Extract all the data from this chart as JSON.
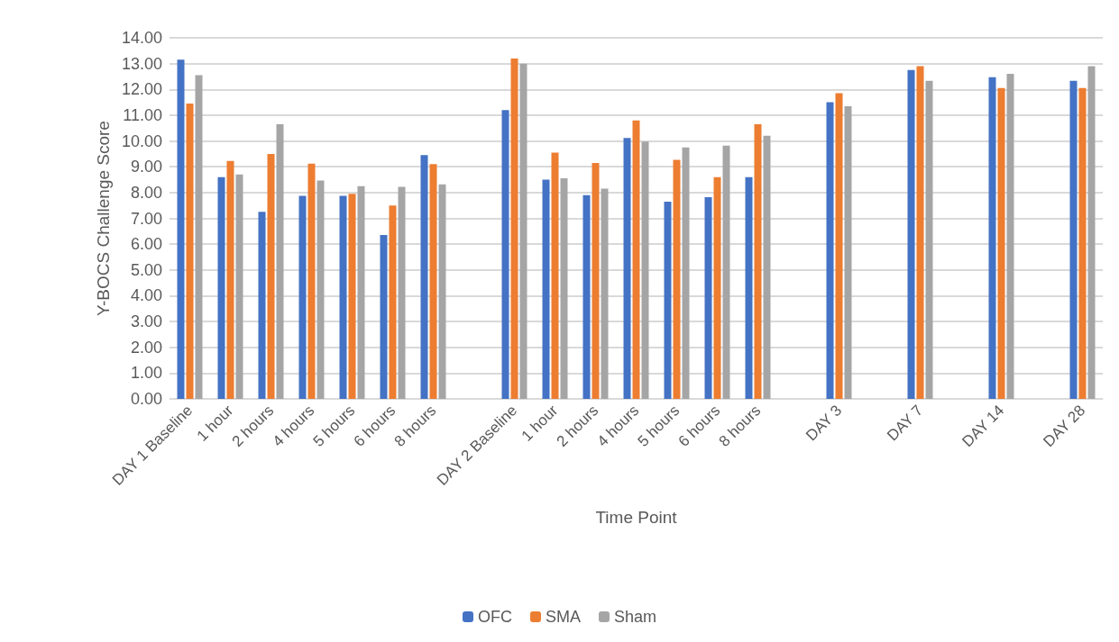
{
  "chart_data": {
    "type": "bar",
    "xlabel": "Time Point",
    "ylabel": "Y-BOCS Challenge Score",
    "categories": [
      "DAY 1 Baseline",
      "1 hour",
      "2 hours",
      "4 hours",
      "5 hours",
      "6 hours",
      "8 hours",
      null,
      "DAY 2 Baseline",
      "1 hour",
      "2 hours",
      "4 hours",
      "5 hours",
      "6 hours",
      "8 hours",
      null,
      "DAY 3",
      null,
      "DAY 7",
      null,
      "DAY 14",
      null,
      "DAY 28"
    ],
    "series": [
      {
        "name": "OFC",
        "color": "#4472c4",
        "values": [
          13.15,
          8.6,
          7.25,
          7.87,
          7.87,
          6.35,
          9.45,
          null,
          11.2,
          8.5,
          7.9,
          10.12,
          7.65,
          7.82,
          8.6,
          null,
          11.5,
          null,
          12.75,
          null,
          12.47,
          null,
          12.33
        ]
      },
      {
        "name": "SMA",
        "color": "#ed7d31",
        "values": [
          11.45,
          9.23,
          9.5,
          9.12,
          7.95,
          7.5,
          9.1,
          null,
          13.2,
          9.55,
          9.15,
          10.8,
          9.27,
          8.6,
          10.65,
          null,
          11.85,
          null,
          12.9,
          null,
          12.05,
          null,
          12.05
        ]
      },
      {
        "name": "Sham",
        "color": "#a5a5a5",
        "values": [
          12.55,
          8.7,
          10.65,
          8.47,
          8.25,
          8.22,
          8.32,
          null,
          13.0,
          8.55,
          8.15,
          9.98,
          9.75,
          9.82,
          10.2,
          null,
          11.35,
          null,
          12.33,
          null,
          12.6,
          null,
          12.9
        ]
      }
    ],
    "ylim": [
      0,
      14
    ],
    "yticks": [
      {
        "value": 0,
        "label": "0.00"
      },
      {
        "value": 1,
        "label": "1.00"
      },
      {
        "value": 2,
        "label": "2.00"
      },
      {
        "value": 3,
        "label": "3.00"
      },
      {
        "value": 4,
        "label": "4.00"
      },
      {
        "value": 5,
        "label": "5.00"
      },
      {
        "value": 6,
        "label": "6.00"
      },
      {
        "value": 7,
        "label": "7.00"
      },
      {
        "value": 8,
        "label": "8.00"
      },
      {
        "value": 9,
        "label": "9.00"
      },
      {
        "value": 10,
        "label": "10.00"
      },
      {
        "value": 11,
        "label": "11.00"
      },
      {
        "value": 12,
        "label": "12.00"
      },
      {
        "value": 13,
        "label": "13.00"
      },
      {
        "value": 14,
        "label": "14.00"
      }
    ],
    "grid": "y",
    "legend": "bottom"
  }
}
